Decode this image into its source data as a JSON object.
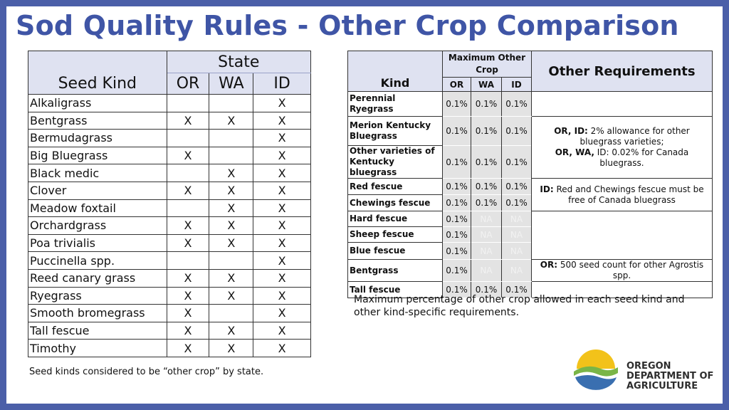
{
  "title": "Sod Quality Rules - Other Crop Comparison",
  "left_table": {
    "header_kind": "Seed Kind",
    "header_state": "State",
    "states": [
      "OR",
      "WA",
      "ID"
    ],
    "rows": [
      {
        "kind": "Alkaligrass",
        "or": "",
        "wa": "",
        "id": "X"
      },
      {
        "kind": "Bentgrass",
        "or": "X",
        "wa": "X",
        "id": "X"
      },
      {
        "kind": "Bermudagrass",
        "or": "",
        "wa": "",
        "id": "X"
      },
      {
        "kind": "Big Bluegrass",
        "or": "X",
        "wa": "",
        "id": "X"
      },
      {
        "kind": "Black medic",
        "or": "",
        "wa": "X",
        "id": "X"
      },
      {
        "kind": "Clover",
        "or": "X",
        "wa": "X",
        "id": "X"
      },
      {
        "kind": "Meadow foxtail",
        "or": "",
        "wa": "X",
        "id": "X"
      },
      {
        "kind": "Orchardgrass",
        "or": "X",
        "wa": "X",
        "id": "X"
      },
      {
        "kind": "Poa trivialis",
        "or": "X",
        "wa": "X",
        "id": "X"
      },
      {
        "kind": "Puccinella spp.",
        "or": "",
        "wa": "",
        "id": "X"
      },
      {
        "kind": "Reed canary grass",
        "or": "X",
        "wa": "X",
        "id": "X"
      },
      {
        "kind": "Ryegrass",
        "or": "X",
        "wa": "X",
        "id": "X"
      },
      {
        "kind": "Smooth bromegrass",
        "or": "X",
        "wa": "",
        "id": "X"
      },
      {
        "kind": "Tall fescue",
        "or": "X",
        "wa": "X",
        "id": "X"
      },
      {
        "kind": "Timothy",
        "or": "X",
        "wa": "X",
        "id": "X"
      }
    ],
    "caption": "Seed kinds considered to be “other crop” by state."
  },
  "right_table": {
    "header_kind": "Kind",
    "header_max": "Maximum Other Crop",
    "states": [
      "OR",
      "WA",
      "ID"
    ],
    "header_other": "Other Requirements",
    "rows": {
      "perennial_ryegrass": {
        "kind": "Perennial Ryegrass",
        "or": "0.1%",
        "wa": "0.1%",
        "id": "0.1%"
      },
      "merion": {
        "kind": "Merion Kentucky Bluegrass",
        "or": "0.1%",
        "wa": "0.1%",
        "id": "0.1%"
      },
      "other_kb": {
        "kind": "Other varieties of Kentucky bluegrass",
        "or": "0.1%",
        "wa": "0.1%",
        "id": "0.1%"
      },
      "red_fescue": {
        "kind": "Red fescue",
        "or": "0.1%",
        "wa": "0.1%",
        "id": "0.1%"
      },
      "chewings": {
        "kind": "Chewings fescue",
        "or": "0.1%",
        "wa": "0.1%",
        "id": "0.1%"
      },
      "hard_fescue": {
        "kind": "Hard fescue",
        "or": "0.1%",
        "wa": "NA",
        "id": "NA"
      },
      "sheep_fescue": {
        "kind": "Sheep fescue",
        "or": "0.1%",
        "wa": "NA",
        "id": "NA"
      },
      "blue_fescue": {
        "kind": "Blue fescue",
        "or": "0.1%",
        "wa": "NA",
        "id": "NA"
      },
      "bentgrass": {
        "kind": "Bentgrass",
        "or": "0.1%",
        "wa": "NA",
        "id": "NA"
      },
      "tall_fescue": {
        "kind": "Tall fescue",
        "or": "0.1%",
        "wa": "0.1%",
        "id": "0.1%"
      }
    },
    "requirements": {
      "bluegrass_label1": "OR, ID:",
      "bluegrass_text1": " 2% allowance for other bluegrass varieties;",
      "bluegrass_label2": "OR, WA,",
      "bluegrass_text2": " ID: 0.02% for Canada bluegrass.",
      "fescue_label": "ID:",
      "fescue_text": " Red and Chewings fescue must be free of Canada bluegrass",
      "bentgrass_label": "OR:",
      "bentgrass_text": " 500 seed count for other Agrostis spp."
    },
    "caption": "Maximum percentage of other crop allowed in each seed kind and other kind-specific requirements."
  },
  "logo": {
    "line1": "OREGON",
    "line2": "DEPARTMENT OF",
    "line3": "AGRICULTURE",
    "colors": {
      "sun": "#f2c21a",
      "hill": "#7ab547",
      "water": "#3a6fb0"
    }
  },
  "colors": {
    "frame": "#4b5fa8",
    "title": "#3f55a6",
    "header_bg": "#dfe2f1"
  }
}
